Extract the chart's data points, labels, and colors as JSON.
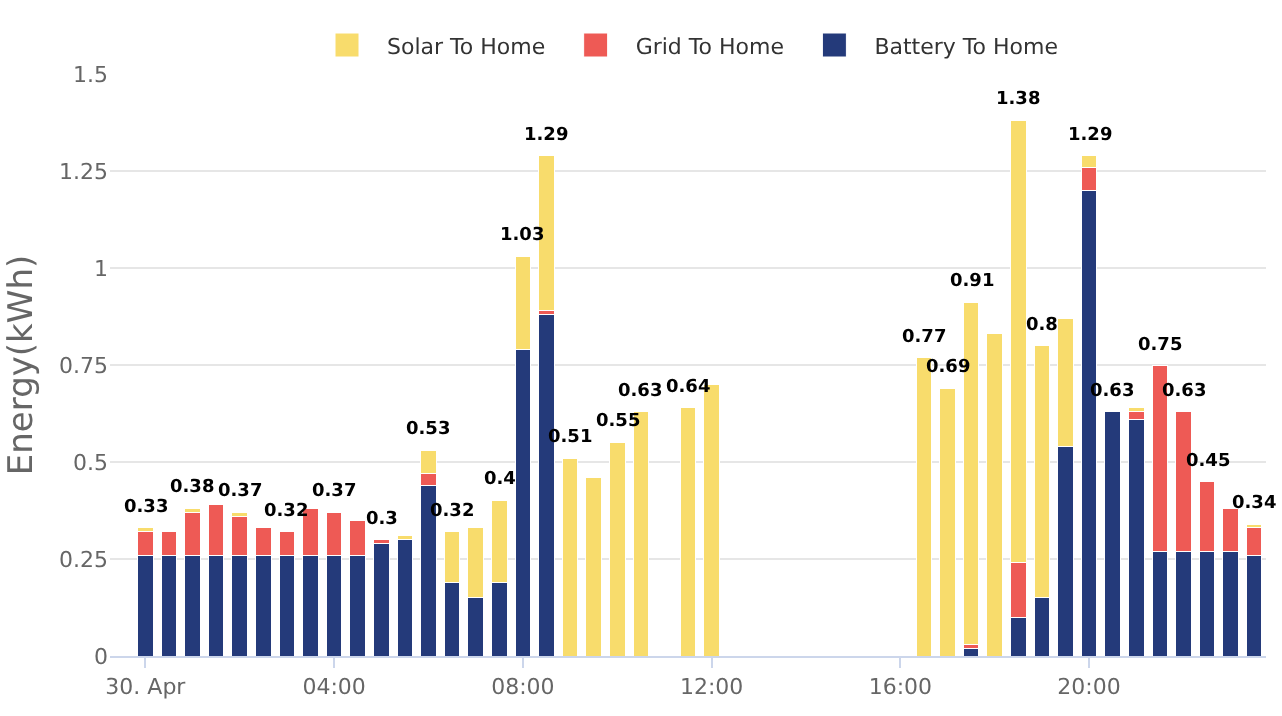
{
  "chart_data": {
    "type": "bar",
    "stacked": true,
    "ylabel": "Energy(kWh)",
    "x": [
      0,
      0.5,
      1,
      1.5,
      2,
      2.5,
      3,
      3.5,
      4,
      4.5,
      5,
      5.5,
      6,
      6.5,
      7,
      7.5,
      8,
      8.5,
      9,
      9.5,
      10,
      10.5,
      11.5,
      12,
      16.5,
      17,
      17.5,
      18,
      18.5,
      19,
      19.5,
      20,
      20.5,
      21,
      21.5,
      22,
      22.5,
      23,
      23.5
    ],
    "series": [
      {
        "name": "Battery To Home",
        "color": "#243a7a",
        "values": [
          0.26,
          0.26,
          0.26,
          0.26,
          0.26,
          0.26,
          0.26,
          0.26,
          0.26,
          0.26,
          0.29,
          0.3,
          0.44,
          0.19,
          0.15,
          0.19,
          0.79,
          0.88,
          null,
          null,
          null,
          null,
          null,
          null,
          null,
          null,
          0.02,
          null,
          0.1,
          0.15,
          0.54,
          1.2,
          0.63,
          0.61,
          0.27,
          0.27,
          0.27,
          0.27,
          0.26
        ]
      },
      {
        "name": "Grid To Home",
        "color": "#ee5a55",
        "values": [
          0.06,
          0.06,
          0.11,
          0.13,
          0.1,
          0.07,
          0.06,
          0.12,
          0.11,
          0.09,
          0.01,
          null,
          0.03,
          null,
          null,
          null,
          null,
          0.01,
          null,
          null,
          null,
          null,
          null,
          null,
          null,
          null,
          0.01,
          null,
          0.14,
          null,
          null,
          0.06,
          null,
          0.02,
          0.48,
          0.36,
          0.18,
          0.11,
          0.07
        ]
      },
      {
        "name": "Solar To Home",
        "color": "#f8dc6c",
        "values": [
          0.01,
          null,
          0.01,
          null,
          0.01,
          null,
          null,
          null,
          null,
          null,
          null,
          0.01,
          0.06,
          0.13,
          0.18,
          0.21,
          0.24,
          0.4,
          0.51,
          0.46,
          0.55,
          0.63,
          0.64,
          0.7,
          0.77,
          0.69,
          0.88,
          0.83,
          1.14,
          0.65,
          0.33,
          0.03,
          null,
          0.01,
          null,
          null,
          null,
          null,
          0.01
        ]
      }
    ],
    "totals": [
      "0.33",
      null,
      "0.38",
      null,
      "0.37",
      null,
      "0.32",
      null,
      "0.37",
      null,
      "0.3",
      null,
      "0.53",
      "0.32",
      null,
      "0.4",
      "1.03",
      "1.29",
      "0.51",
      null,
      "0.55",
      "0.63",
      "0.64",
      null,
      "0.77",
      "0.69",
      "0.91",
      null,
      "1.38",
      "0.8",
      null,
      "1.29",
      "0.63",
      null,
      "0.75",
      "0.63",
      "0.45",
      null,
      "0.34"
    ],
    "xlim": [
      -0.75,
      23.75
    ],
    "xticks": [
      {
        "value": 0,
        "label": "30. Apr"
      },
      {
        "value": 4,
        "label": "04:00"
      },
      {
        "value": 8,
        "label": "08:00"
      },
      {
        "value": 12,
        "label": "12:00"
      },
      {
        "value": 16,
        "label": "16:00"
      },
      {
        "value": 20,
        "label": "20:00"
      }
    ],
    "ylim": [
      0,
      1.5
    ],
    "yticks": [
      0,
      0.25,
      0.5,
      0.75,
      1,
      1.25,
      1.5
    ],
    "grid": "y",
    "legend": "top"
  }
}
